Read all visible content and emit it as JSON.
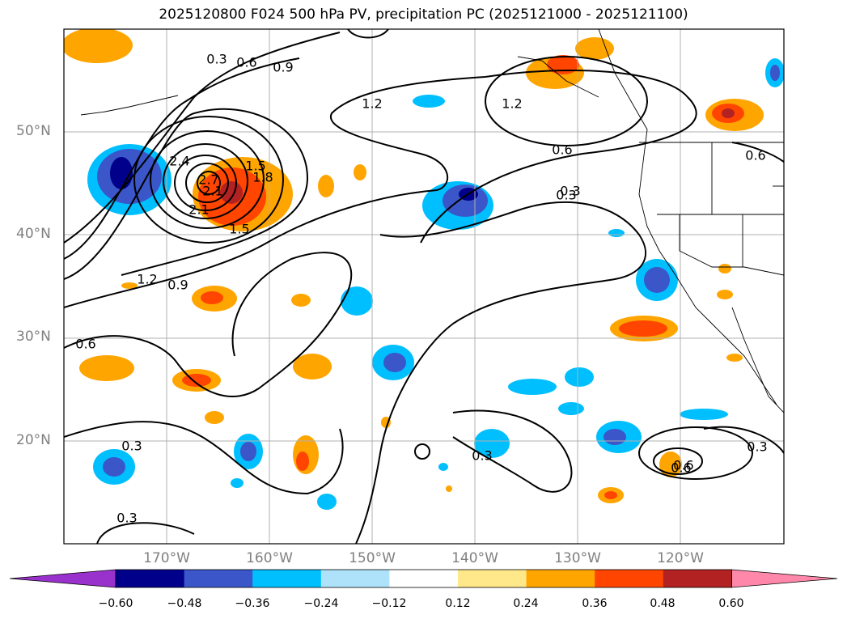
{
  "title": "2025120800 F024 500 hPa PV, precipitation PC (2025121000 - 2025121100)",
  "lat_ticks": [
    "50°N",
    "40°N",
    "30°N",
    "20°N"
  ],
  "lon_ticks": [
    "170°W",
    "160°W",
    "150°W",
    "140°W",
    "130°W",
    "120°W"
  ],
  "pv_contour_labels": [
    "0.3",
    "0.6",
    "0.9",
    "1.2",
    "1.5",
    "1.8",
    "2.1",
    "2.4",
    "2.7",
    "0.3",
    "0.6",
    "1.2",
    "0.6",
    "0.3",
    "0.6",
    "1.2",
    "0.9",
    "1.5",
    "2.1",
    "0.6",
    "0.3",
    "0.3",
    "0.3",
    "0.6",
    "0.3"
  ],
  "colorbar": {
    "tick_labels": [
      "−0.60",
      "−0.48",
      "−0.36",
      "−0.24",
      "−0.12",
      "0.12",
      "0.24",
      "0.36",
      "0.48",
      "0.60"
    ],
    "colors": [
      "#9932cc",
      "#00008b",
      "#3a56c8",
      "#00bfff",
      "#aee2fa",
      "#ffffff",
      "#ffe88a",
      "#ffa500",
      "#ff4500",
      "#b22222",
      "#ff88aa"
    ]
  },
  "map": {
    "extent_lon": [
      -180,
      -110
    ],
    "extent_lat": [
      10,
      60
    ],
    "grid": true
  }
}
